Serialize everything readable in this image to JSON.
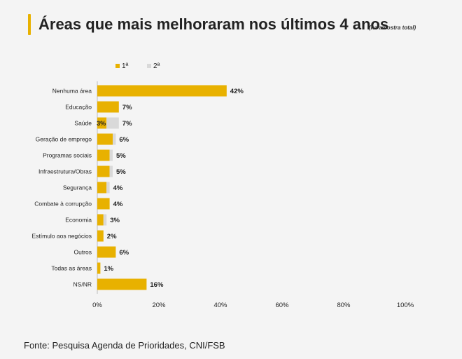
{
  "header": {
    "title": "Áreas que mais melhoraram nos últimos 4 anos",
    "subtitle": "(na amostra total)"
  },
  "source": "Fonte: Pesquisa Agenda de Prioridades, CNI/FSB",
  "colors": {
    "primary": "#e8b100",
    "secondary": "#d9d9d9",
    "accent": "#e8b100"
  },
  "chart_data": {
    "type": "bar",
    "orientation": "horizontal",
    "stacked": true,
    "categories": [
      "Nenhuma área",
      "Educação",
      "Saúde",
      "Geração de emprego",
      "Programas sociais",
      "Infraestrutura/Obras",
      "Segurança",
      "Combate à corrupção",
      "Economia",
      "Estímulo aos negócios",
      "Outros",
      "Todas as áreas",
      "NS/NR"
    ],
    "series": [
      {
        "name": "1ª",
        "color": "#e8b100",
        "values": [
          42,
          7,
          3,
          5,
          4,
          4,
          3,
          4,
          2,
          2,
          6,
          1,
          16
        ]
      },
      {
        "name": "2ª",
        "color": "#d9d9d9",
        "values": [
          0,
          0,
          4,
          1,
          1,
          1,
          1,
          0,
          1,
          0,
          0,
          0,
          0
        ]
      }
    ],
    "segment_labels": [
      {
        "category": "Saúde",
        "series": "1ª",
        "label": "3%"
      }
    ],
    "total_labels": [
      "42%",
      "7%",
      "7%",
      "6%",
      "5%",
      "5%",
      "4%",
      "4%",
      "3%",
      "2%",
      "6%",
      "1%",
      "16%"
    ],
    "xlim": [
      0,
      100
    ],
    "x_ticks": [
      "0%",
      "20%",
      "40%",
      "60%",
      "80%",
      "100%"
    ],
    "legend_position": "top-left",
    "grid": false
  }
}
